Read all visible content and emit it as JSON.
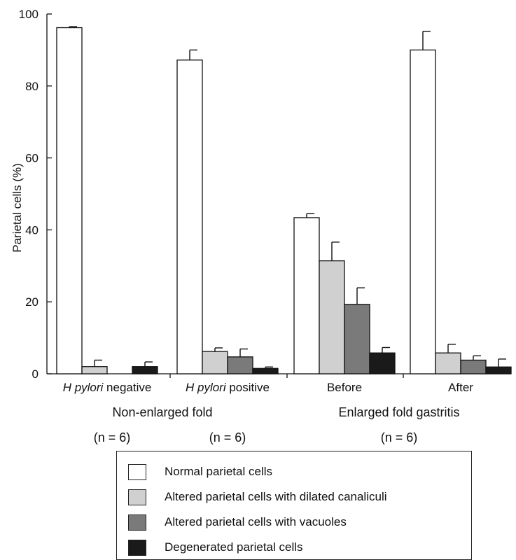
{
  "chart_data": {
    "type": "bar",
    "ylabel": "Parietal cells (%)",
    "ylim": [
      0,
      100
    ],
    "yticks": [
      0,
      20,
      40,
      60,
      80,
      100
    ],
    "categories": [
      {
        "prefix": "H pylori",
        "suffix": " negative",
        "italic_prefix": true
      },
      {
        "prefix": "H pylori",
        "suffix": " positive",
        "italic_prefix": true
      },
      {
        "prefix": "Before",
        "suffix": "",
        "italic_prefix": false
      },
      {
        "prefix": "After",
        "suffix": "",
        "italic_prefix": false
      }
    ],
    "groups": [
      {
        "label": "Non-enlarged fold",
        "n_labels": [
          "(n = 6)",
          "(n = 6)"
        ]
      },
      {
        "label": "Enlarged fold gastritis",
        "n_labels": [
          "(n = 6)"
        ]
      }
    ],
    "series": [
      {
        "name": "Normal parietal cells",
        "color": "#ffffff",
        "values": [
          96.2,
          87.2,
          43.4,
          90.0
        ],
        "errors": [
          0.3,
          2.8,
          1.1,
          5.2
        ]
      },
      {
        "name": "Altered parietal cells with dilated canaliculi",
        "color": "#d0d0d0",
        "values": [
          2.0,
          6.2,
          31.4,
          5.8
        ],
        "errors": [
          1.8,
          1.0,
          5.2,
          2.4
        ]
      },
      {
        "name": "Altered parietal cells with vacuoles",
        "color": "#7a7a7a",
        "values": [
          null,
          4.7,
          19.3,
          3.8
        ],
        "errors": [
          null,
          2.2,
          4.6,
          1.2
        ]
      },
      {
        "name": "Degenerated parietal cells",
        "color": "#1a1a1a",
        "values": [
          2.0,
          1.5,
          5.8,
          1.9
        ],
        "errors": [
          1.3,
          0.4,
          1.5,
          2.2
        ]
      }
    ]
  }
}
